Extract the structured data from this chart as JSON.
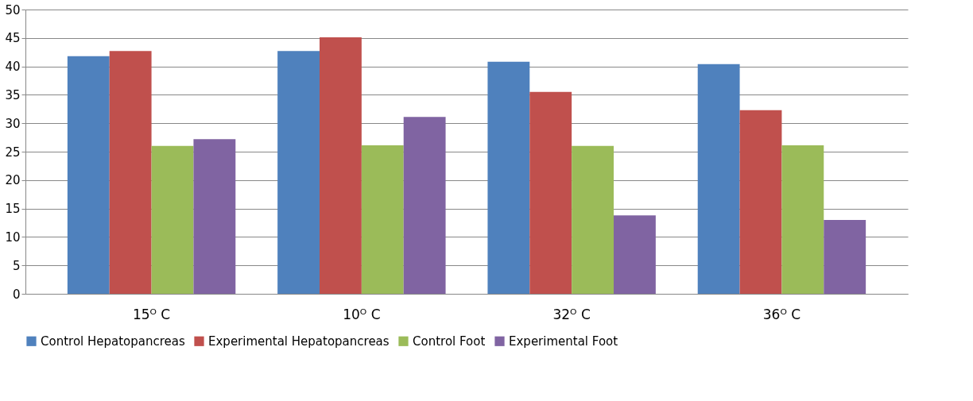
{
  "chart_data": {
    "type": "bar",
    "categories": [
      "15ᴼ C",
      "10ᴼ C",
      "32ᴼ C",
      "36ᴼ C"
    ],
    "series": [
      {
        "name": "Control Hepatopancreas",
        "color": "#4f81bd",
        "values": [
          41.8,
          42.7,
          40.8,
          40.4
        ]
      },
      {
        "name": "Experimental Hepatopancreas",
        "color": "#c0504d",
        "values": [
          42.7,
          45.1,
          35.5,
          32.3
        ]
      },
      {
        "name": "Control Foot",
        "color": "#9bbb59",
        "values": [
          26.0,
          26.1,
          26.0,
          26.1
        ]
      },
      {
        "name": "Experimental Foot",
        "color": "#8064a2",
        "values": [
          27.2,
          31.1,
          13.8,
          13.0
        ]
      }
    ],
    "ylim": [
      0,
      50
    ],
    "yticks": [
      0,
      5,
      10,
      15,
      20,
      25,
      30,
      35,
      40,
      45,
      50
    ],
    "grid": "y",
    "legend": "bottom"
  }
}
